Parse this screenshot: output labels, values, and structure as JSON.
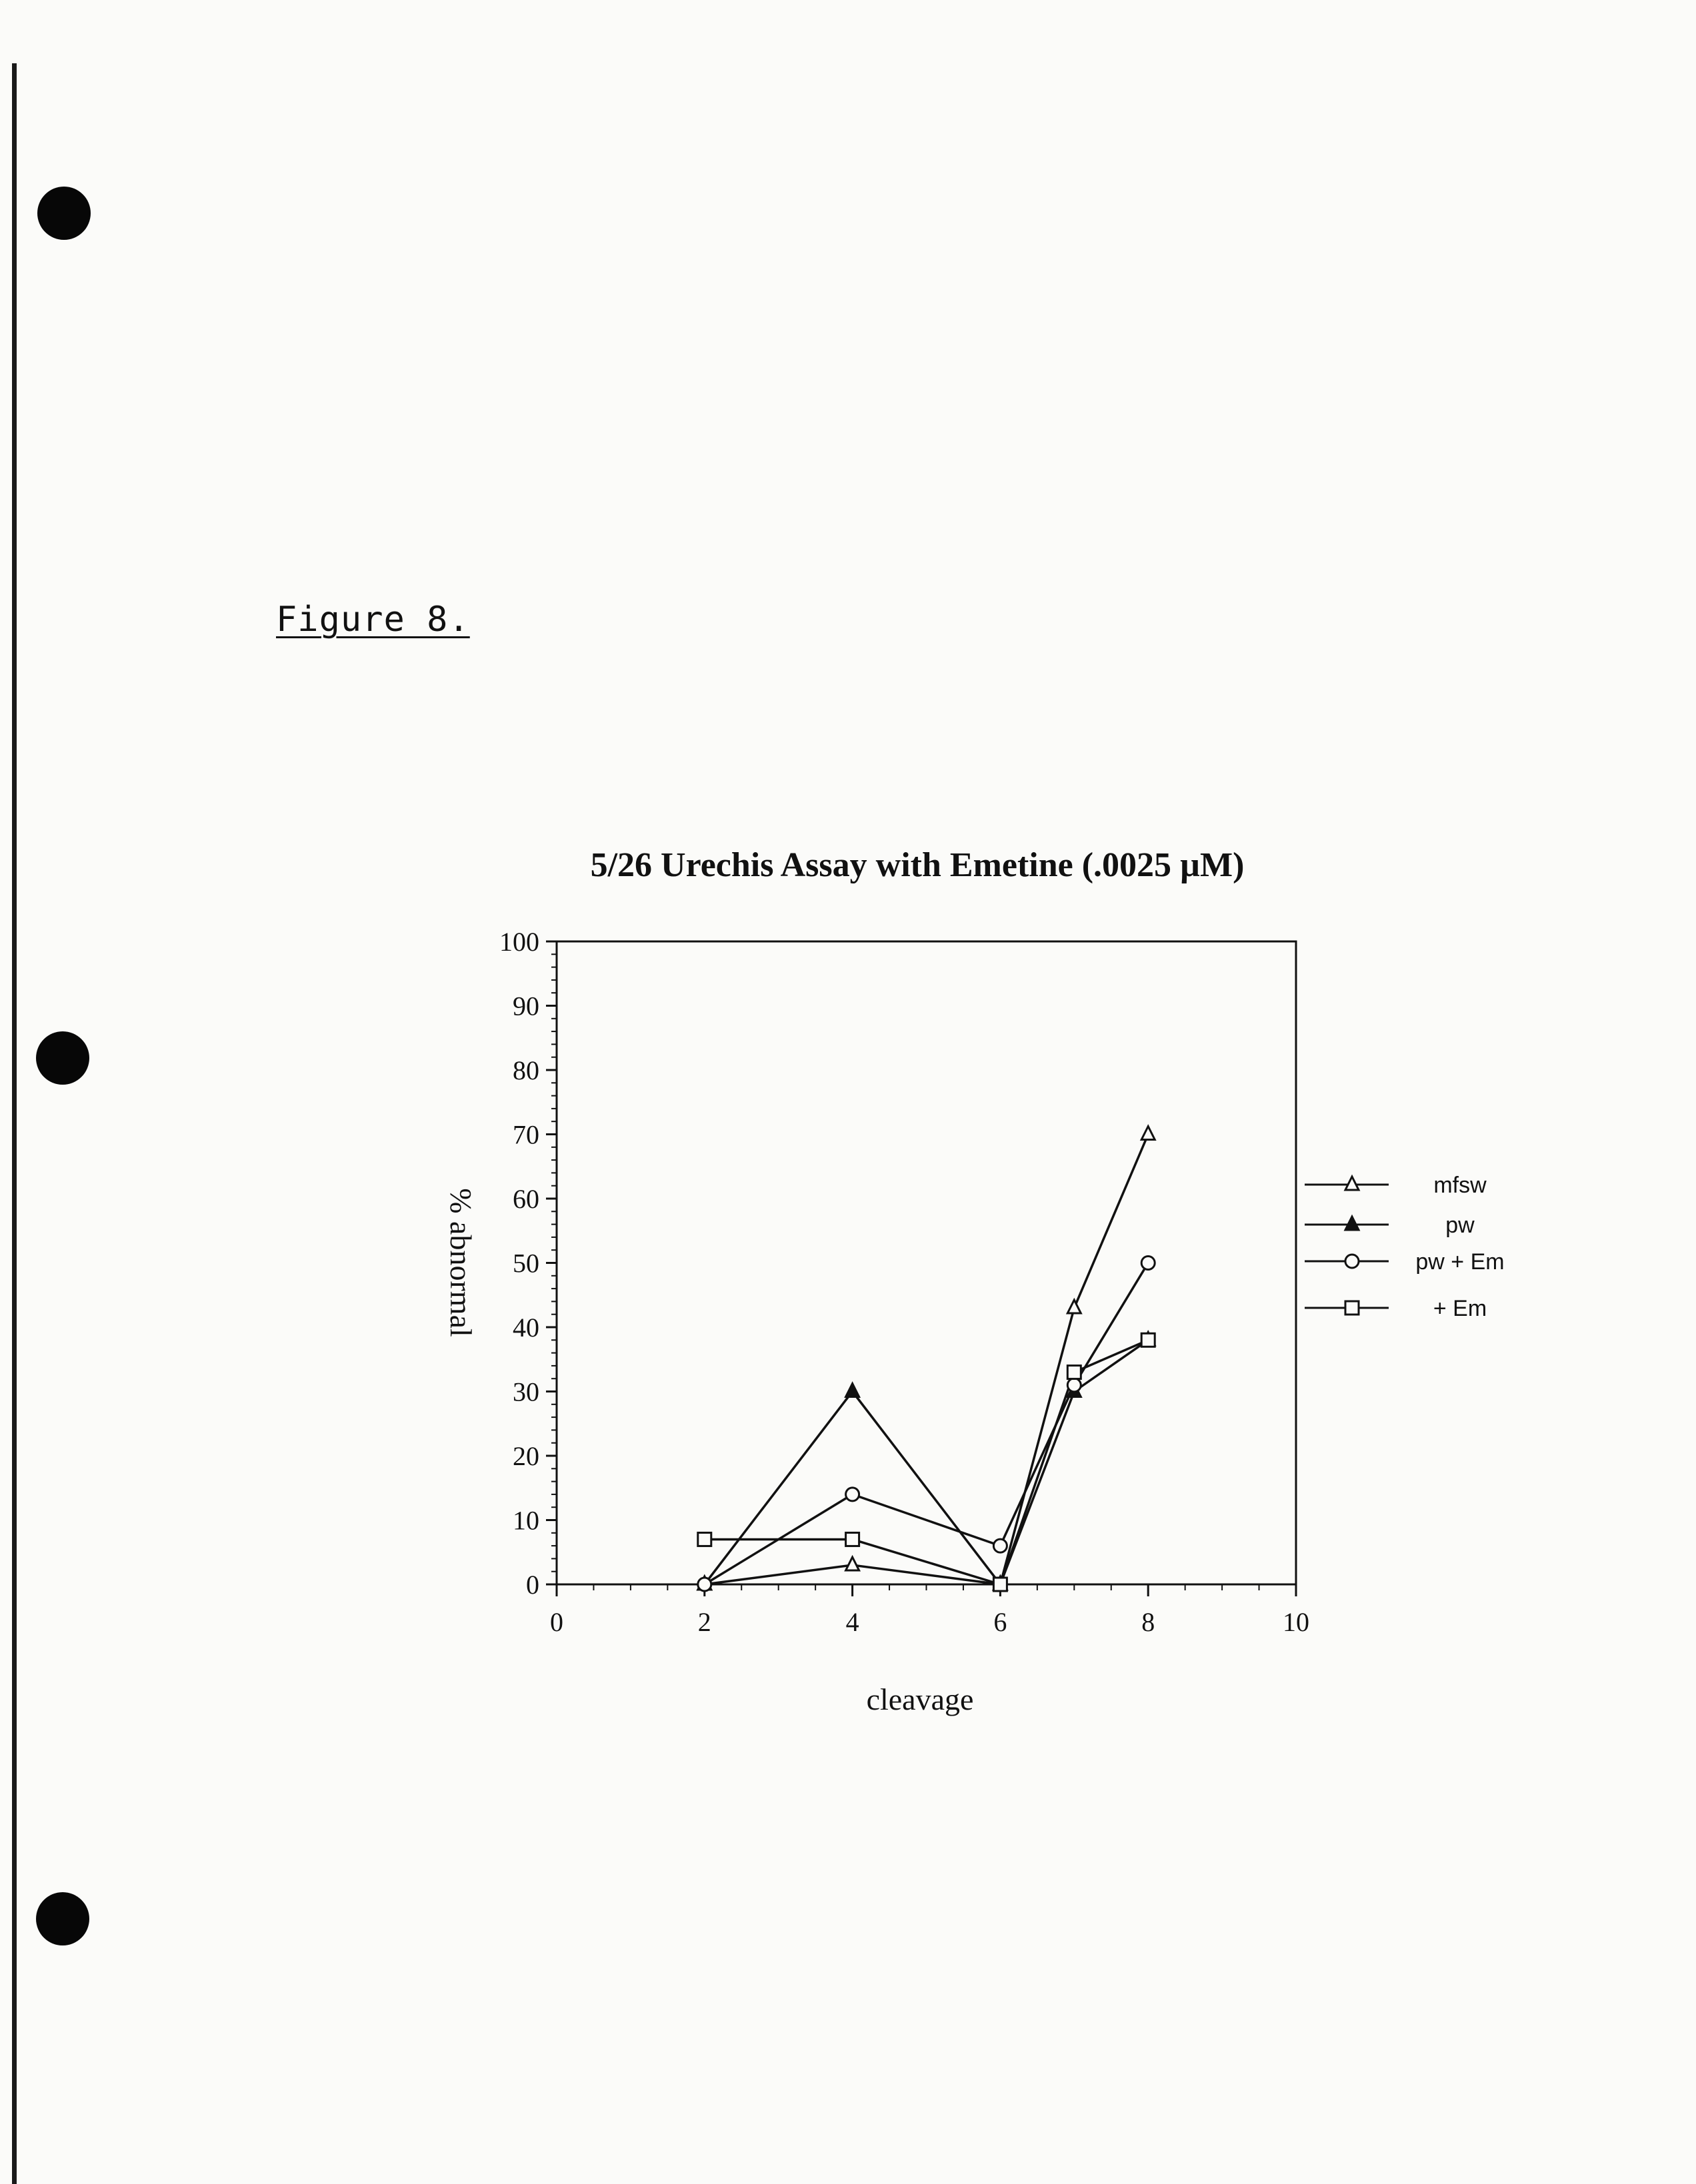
{
  "document": {
    "figure_label": "Figure 8."
  },
  "colors": {
    "ink": "#111111",
    "paper": "#fbfbf9"
  },
  "chart_data": {
    "type": "line",
    "title": "5/26 Urechis Assay with Emetine (.0025 µM)",
    "xlabel": "cleavage",
    "ylabel": "% abnormal",
    "xlim": [
      0,
      10
    ],
    "ylim": [
      0,
      100
    ],
    "x_ticks": [
      "0",
      "2",
      "4",
      "6",
      "8",
      "10"
    ],
    "y_ticks": [
      "0",
      "10",
      "20",
      "30",
      "40",
      "50",
      "60",
      "70",
      "80",
      "90",
      "100"
    ],
    "grid": false,
    "legend_position": "right",
    "series": [
      {
        "name": "mfsw",
        "marker": "triangle-open",
        "x": [
          2,
          4,
          6,
          7,
          8
        ],
        "y": [
          0,
          3,
          0,
          43,
          70
        ]
      },
      {
        "name": "pw",
        "marker": "triangle-filled",
        "x": [
          2,
          4,
          6,
          7,
          8
        ],
        "y": [
          0,
          30,
          0,
          30,
          38
        ]
      },
      {
        "name": "pw + Em",
        "marker": "circle-open",
        "x": [
          2,
          4,
          6,
          7,
          8
        ],
        "y": [
          0,
          14,
          6,
          31,
          50
        ]
      },
      {
        "name": "+ Em",
        "marker": "square-open",
        "x": [
          2,
          4,
          6,
          7,
          8
        ],
        "y": [
          7,
          7,
          0,
          33,
          38
        ]
      }
    ]
  }
}
